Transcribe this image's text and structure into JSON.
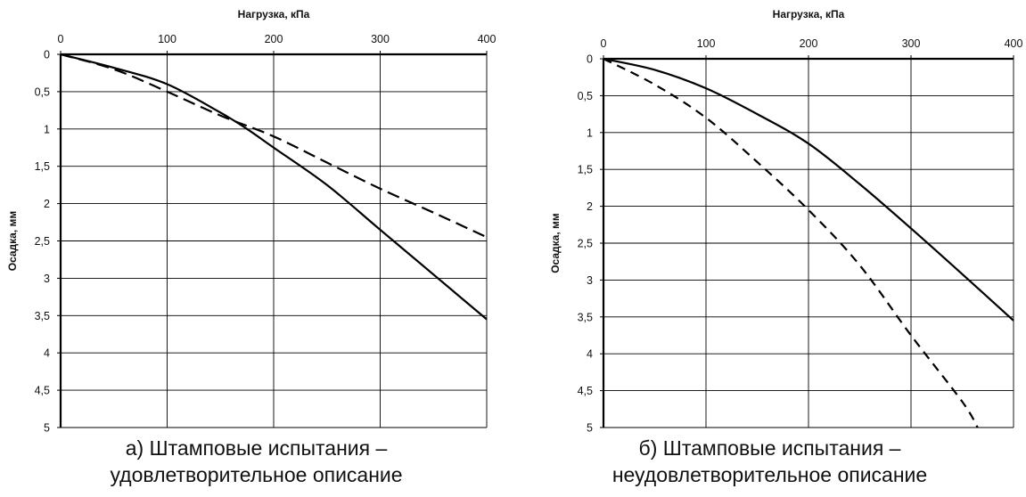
{
  "chart_data": [
    {
      "type": "line",
      "caption_line1": "а) Штамповые испытания –",
      "caption_line2": "удовлетворительное описание",
      "xlabel": "Нагрузка, кПа",
      "ylabel": "Осадка, мм",
      "x_ticks": [
        "0",
        "100",
        "200",
        "300",
        "400"
      ],
      "y_ticks": [
        "0",
        "0,5",
        "1",
        "1,5",
        "2",
        "2,5",
        "3",
        "3,5",
        "4",
        "4,5",
        "5"
      ],
      "xlim": [
        0,
        400
      ],
      "ylim": [
        0,
        5
      ],
      "y_inverted": true,
      "x_axis_position": "top",
      "grid": true,
      "series": [
        {
          "style": "solid",
          "color": "#000000",
          "x": [
            0,
            50,
            100,
            150,
            175,
            200,
            250,
            300,
            350,
            400
          ],
          "y": [
            0,
            0.18,
            0.4,
            0.78,
            1.0,
            1.25,
            1.75,
            2.35,
            2.95,
            3.55
          ]
        },
        {
          "style": "dashed",
          "color": "#000000",
          "x": [
            0,
            50,
            100,
            150,
            200,
            250,
            300,
            350,
            400
          ],
          "y": [
            0,
            0.2,
            0.5,
            0.82,
            1.1,
            1.45,
            1.8,
            2.12,
            2.45
          ]
        }
      ]
    },
    {
      "type": "line",
      "caption_line1": "б) Штамповые испытания –",
      "caption_line2": "неудовлетворительное описание",
      "xlabel": "Нагрузка, кПа",
      "ylabel": "Осадка, мм",
      "x_ticks": [
        "0",
        "100",
        "200",
        "300",
        "400"
      ],
      "y_ticks": [
        "0",
        "0,5",
        "1",
        "1,5",
        "2",
        "2,5",
        "3",
        "3,5",
        "4",
        "4,5",
        "5"
      ],
      "xlim": [
        0,
        400
      ],
      "ylim": [
        0,
        5
      ],
      "y_inverted": true,
      "x_axis_position": "top",
      "grid": true,
      "series": [
        {
          "style": "solid",
          "color": "#000000",
          "x": [
            0,
            50,
            100,
            150,
            200,
            250,
            300,
            350,
            400
          ],
          "y": [
            0,
            0.15,
            0.4,
            0.75,
            1.15,
            1.7,
            2.3,
            2.92,
            3.55
          ]
        },
        {
          "style": "dashed",
          "color": "#000000",
          "x": [
            0,
            50,
            100,
            150,
            200,
            250,
            300,
            350,
            365
          ],
          "y": [
            0,
            0.35,
            0.8,
            1.4,
            2.05,
            2.8,
            3.75,
            4.65,
            5.0
          ]
        }
      ]
    }
  ]
}
